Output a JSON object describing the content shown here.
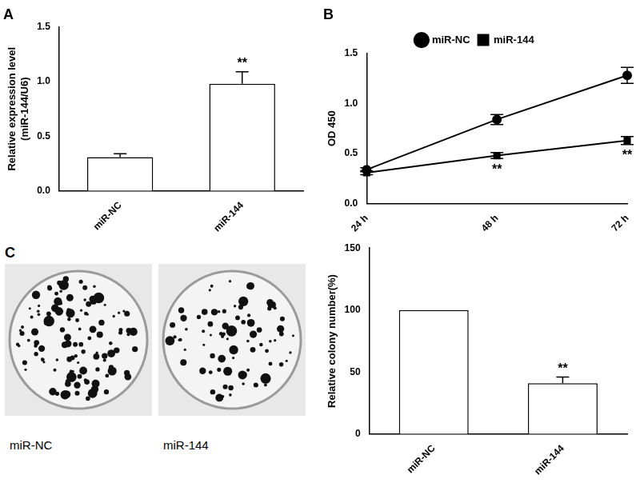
{
  "chart_data": [
    {
      "type": "bar",
      "title": "A",
      "categories": [
        "miR-NC",
        "miR-144"
      ],
      "values": [
        0.31,
        0.98
      ],
      "errors": [
        0.03,
        0.11
      ],
      "color": "#ffffff",
      "y_label": [
        "Relative expression level",
        "(miR-144/U6)"
      ],
      "ylim": [
        0,
        1.5
      ],
      "yticks": [
        {
          "value": 0,
          "label": "0.0"
        },
        0.5,
        {
          "value": 1,
          "label": "1.0"
        },
        1.5
      ],
      "grid": false,
      "annotations": [
        {
          "category": "miR-144",
          "text": "**"
        }
      ]
    },
    {
      "type": "line",
      "title": "B",
      "categories": [
        "24 h",
        "48 h",
        "72 h"
      ],
      "series": [
        {
          "name": "miR-NC",
          "color": "#000000",
          "marker": "circle",
          "values": [
            0.34,
            0.84,
            1.28
          ],
          "errors": [
            0.02,
            0.05,
            0.08
          ]
        },
        {
          "name": "miR-144",
          "color": "#000000",
          "marker": "square",
          "values": [
            0.31,
            0.48,
            0.63
          ],
          "errors": [
            0.02,
            0.03,
            0.04
          ]
        }
      ],
      "y_label": "OD 450",
      "ylim": [
        0,
        1.5
      ],
      "yticks": [
        {
          "value": 0,
          "label": "0.0"
        },
        0.5,
        {
          "value": 1,
          "label": "1.0"
        },
        1.5
      ],
      "grid": false,
      "legend": "top",
      "annotations": [
        {
          "category": "48 h",
          "series": "miR-144",
          "text": "**"
        },
        {
          "category": "72 h",
          "series": "miR-144",
          "text": "**"
        }
      ]
    },
    {
      "type": "bar",
      "categories": [
        "miR-NC",
        "miR-144"
      ],
      "values": [
        100,
        41
      ],
      "errors": [
        null,
        5
      ],
      "color": "#ffffff",
      "y_label": "Relative colony number(%)",
      "ylim": [
        0,
        150
      ],
      "yticks": [
        0,
        50,
        100,
        150
      ],
      "grid": false,
      "annotations": [
        {
          "category": "miR-144",
          "text": "**"
        }
      ]
    }
  ],
  "colony_photos": {
    "panel_label": "C",
    "plates": [
      "miR-NC",
      "miR-144"
    ]
  }
}
